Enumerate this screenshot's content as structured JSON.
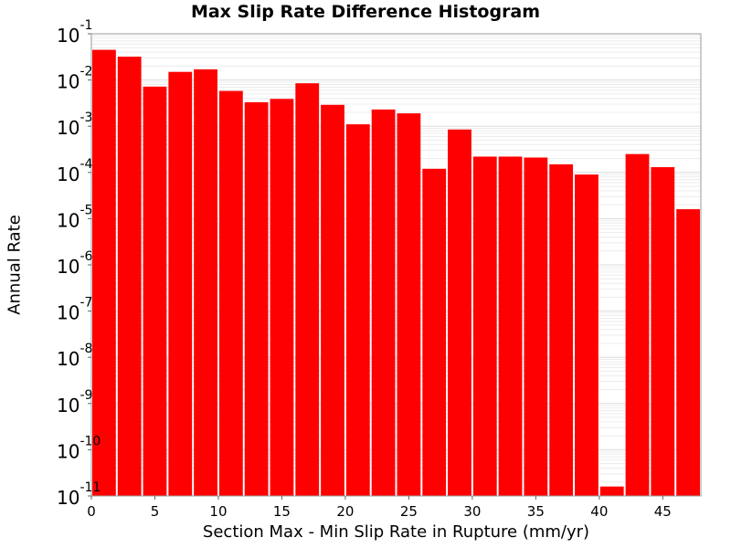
{
  "chart_data": {
    "type": "bar",
    "title": "Max Slip Rate Difference Histogram",
    "xlabel": "Section Max - Min Slip Rate in Rupture (mm/yr)",
    "ylabel": "Annual Rate",
    "yscale": "log",
    "xlim": [
      0,
      48
    ],
    "ylim": [
      1e-11,
      0.1
    ],
    "bin_width": 2,
    "bar_color": "#ff0000",
    "grid": true,
    "x_ticks": [
      "0",
      "5",
      "10",
      "15",
      "20",
      "25",
      "30",
      "35",
      "40",
      "45"
    ],
    "x_tick_values": [
      0,
      5,
      10,
      15,
      20,
      25,
      30,
      35,
      40,
      45
    ],
    "y_tick_exponents": [
      "-11",
      "-10",
      "-9",
      "-8",
      "-7",
      "-6",
      "-5",
      "-4",
      "-3",
      "-2",
      "-1"
    ],
    "y_tick_base": "10",
    "bins": [
      {
        "x": 1,
        "value": 0.045
      },
      {
        "x": 3,
        "value": 0.032
      },
      {
        "x": 5,
        "value": 0.0072
      },
      {
        "x": 7,
        "value": 0.015
      },
      {
        "x": 9,
        "value": 0.017
      },
      {
        "x": 11,
        "value": 0.0058
      },
      {
        "x": 13,
        "value": 0.0033
      },
      {
        "x": 15,
        "value": 0.0039
      },
      {
        "x": 17,
        "value": 0.0085
      },
      {
        "x": 19,
        "value": 0.0029
      },
      {
        "x": 21,
        "value": 0.0011
      },
      {
        "x": 23,
        "value": 0.0023
      },
      {
        "x": 25,
        "value": 0.0019
      },
      {
        "x": 27,
        "value": 0.00012
      },
      {
        "x": 29,
        "value": 0.00085
      },
      {
        "x": 31,
        "value": 0.00022
      },
      {
        "x": 33,
        "value": 0.00022
      },
      {
        "x": 35,
        "value": 0.00021
      },
      {
        "x": 37,
        "value": 0.00015
      },
      {
        "x": 39,
        "value": 9e-05
      },
      {
        "x": 41,
        "value": 1.6e-11
      },
      {
        "x": 43,
        "value": 0.00025
      },
      {
        "x": 45,
        "value": 0.00013
      },
      {
        "x": 47,
        "value": 1.6e-05
      }
    ]
  }
}
